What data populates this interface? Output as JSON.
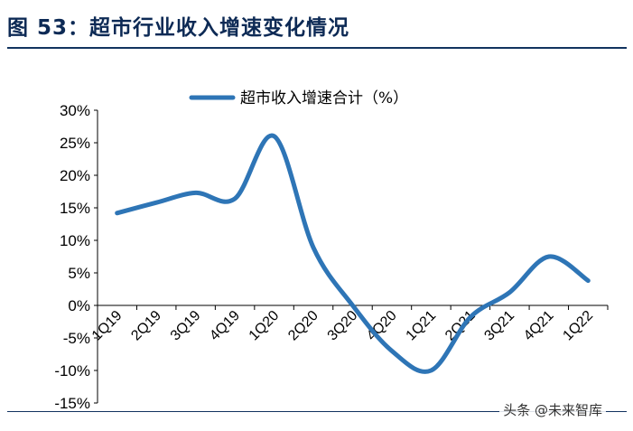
{
  "header": {
    "title": "图  53：超市行业收入增速变化情况"
  },
  "watermark": "头条 @未来智库",
  "colors": {
    "series": "#2e75b6",
    "title": "#0d2a55",
    "axis": "#000000"
  },
  "chart_data": {
    "type": "line",
    "title": "",
    "xlabel": "",
    "ylabel": "",
    "categories": [
      "1Q19",
      "2Q19",
      "3Q19",
      "4Q19",
      "1Q20",
      "2Q20",
      "3Q20",
      "4Q20",
      "1Q21",
      "2Q21",
      "3Q21",
      "4Q21",
      "1Q22"
    ],
    "series": [
      {
        "name": "超市收入增速合计（%）",
        "values": [
          14.2,
          15.8,
          17.3,
          16.4,
          26.0,
          8.9,
          0.0,
          -7.0,
          -10.0,
          -1.8,
          2.0,
          7.5,
          3.8
        ]
      }
    ],
    "y_ticks": [
      "30%",
      "25%",
      "20%",
      "15%",
      "10%",
      "5%",
      "0%",
      "-5%",
      "-10%",
      "-15%"
    ],
    "ylim": [
      -15,
      30
    ],
    "legend_position": "top",
    "grid": false,
    "smooth": true
  }
}
